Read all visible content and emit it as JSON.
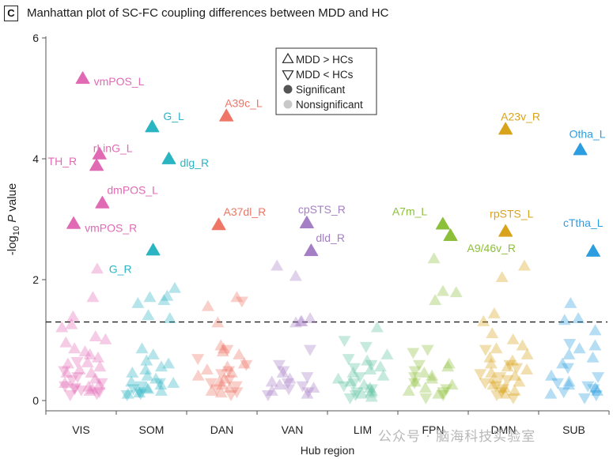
{
  "panel_letter": "C",
  "watermark": "公众号 · 脑海科技实验室",
  "colors": {
    "VIS": "#e16ab4",
    "SOM": "#2bb5c3",
    "DAN": "#ef7566",
    "VAN": "#a57fc6",
    "LIM": "#5fc3a1",
    "FPN": "#8cbf3a",
    "DMN": "#d9a21b",
    "SUB": "#2c9ee0"
  },
  "chart_data": {
    "type": "scatter",
    "title": "Manhattan plot of SC-FC coupling differences between MDD and  HC",
    "xlabel": "Hub region",
    "ylabel": "-log10 P value",
    "ylabel_parts": {
      "prefix": "-log",
      "subscript": "10",
      "italic": "P",
      "suffix": " value"
    },
    "ylim": [
      0,
      6
    ],
    "yticks": [
      0,
      2,
      4,
      6
    ],
    "categories": [
      "VIS",
      "SOM",
      "DAN",
      "VAN",
      "LIM",
      "FPN",
      "DMN",
      "SUB"
    ],
    "threshold": 1.3,
    "legend": {
      "position": "top-center",
      "entries": [
        {
          "marker": "triangle-up-open",
          "label": "MDD > HCs"
        },
        {
          "marker": "triangle-down-open",
          "label": "MDD < HCs"
        },
        {
          "marker": "circle-dark",
          "label": "Significant"
        },
        {
          "marker": "circle-light",
          "label": "Nonsignificant"
        }
      ]
    },
    "significant": [
      {
        "label": "vmPOS_L",
        "network": "VIS",
        "x": 0.74,
        "y": 5.32,
        "dir": "up"
      },
      {
        "label": "rLinG_L",
        "network": "VIS",
        "x": 1.09,
        "y": 4.07,
        "dir": "up"
      },
      {
        "label": "TH_R",
        "network": "VIS",
        "x": 1.03,
        "y": 3.88,
        "dir": "up"
      },
      {
        "label": "dmPOS_L",
        "network": "VIS",
        "x": 1.15,
        "y": 3.26,
        "dir": "up"
      },
      {
        "label": "vmPOS_R",
        "network": "VIS",
        "x": 0.55,
        "y": 2.92,
        "dir": "up"
      },
      {
        "label": "G_L",
        "network": "SOM",
        "x": 0.72,
        "y": 4.52,
        "dir": "up"
      },
      {
        "label": "dlg_R",
        "network": "SOM",
        "x": 1.07,
        "y": 3.99,
        "dir": "up"
      },
      {
        "label": "G_R",
        "network": "SOM",
        "x": 0.74,
        "y": 2.48,
        "dir": "up"
      },
      {
        "label": "A39c_L",
        "network": "DAN",
        "x": 0.8,
        "y": 4.7,
        "dir": "up"
      },
      {
        "label": "A37dl_R",
        "network": "DAN",
        "x": 0.64,
        "y": 2.9,
        "dir": "up"
      },
      {
        "label": "cpSTS_R",
        "network": "VAN",
        "x": 1.01,
        "y": 2.93,
        "dir": "up"
      },
      {
        "label": "dld_R",
        "network": "VAN",
        "x": 1.1,
        "y": 2.47,
        "dir": "up"
      },
      {
        "label": "A7m_L",
        "network": "FPN",
        "x": 0.91,
        "y": 2.91,
        "dir": "up"
      },
      {
        "label": "A9/46v_R",
        "network": "FPN",
        "x": 1.07,
        "y": 2.72,
        "dir": "up"
      },
      {
        "label": "A23v_R",
        "network": "DMN",
        "x": 0.75,
        "y": 4.48,
        "dir": "up"
      },
      {
        "label": "rpSTS_L",
        "network": "DMN",
        "x": 0.75,
        "y": 2.79,
        "dir": "up"
      },
      {
        "label": "Otha_L",
        "network": "SUB",
        "x": 0.84,
        "y": 4.14,
        "dir": "up"
      },
      {
        "label": "cTtha_L",
        "network": "SUB",
        "x": 1.11,
        "y": 2.46,
        "dir": "up"
      }
    ],
    "nonsignificant": {
      "VIS": {
        "up": [
          0.22,
          1.25,
          0.62,
          1.0,
          0.75,
          0.15,
          0.28,
          0.55,
          0.45,
          2.17,
          1.7,
          1.38,
          1.05,
          0.95,
          0.8,
          0.6,
          0.45,
          0.35,
          0.25,
          0.7,
          1.2,
          0.5,
          0.18,
          0.85
        ],
        "down": [
          0.1,
          0.2,
          0.3,
          0.15,
          0.65,
          0.4,
          0.12,
          0.25,
          0.5,
          0.35,
          0.22,
          0.18
        ]
      },
      "SOM": {
        "up": [
          1.85,
          1.7,
          1.65,
          1.6,
          1.4,
          1.35,
          1.72,
          0.85,
          0.75,
          0.6,
          0.55,
          0.45,
          0.35,
          0.3,
          0.25,
          0.2,
          0.15,
          0.12,
          0.5,
          0.65,
          0.4,
          0.28,
          0.18,
          0.1
        ],
        "down": [
          0.15,
          0.2,
          0.3,
          0.1,
          0.25,
          0.12
        ]
      },
      "DAN": {
        "up": [
          1.28,
          1.55,
          1.7,
          0.9,
          0.85,
          0.75,
          0.55,
          0.45,
          0.4,
          0.35,
          0.3,
          0.25,
          0.2,
          0.15,
          0.12,
          0.6,
          0.5,
          0.8
        ],
        "down": [
          1.65,
          0.85,
          0.7,
          0.5,
          0.35,
          0.2,
          0.15,
          0.1,
          0.3,
          0.25,
          0.6,
          0.45
        ]
      },
      "VAN": {
        "up": [
          2.22,
          2.05,
          1.3,
          1.35,
          1.28,
          1.3,
          0.3,
          0.2,
          0.15,
          0.25,
          0.35,
          0.1,
          0.45
        ],
        "down": [
          0.85,
          0.6,
          0.4,
          0.3,
          0.2,
          0.1,
          0.5,
          0.25,
          0.15
        ]
      },
      "LIM": {
        "up": [
          1.2,
          0.75,
          0.65,
          0.55,
          0.45,
          0.35,
          0.3,
          0.25,
          0.2,
          0.15,
          0.12,
          0.1,
          0.5,
          0.4,
          0.05
        ],
        "down": [
          1.0,
          0.9,
          0.7,
          0.6,
          0.4,
          0.3,
          0.2,
          0.1,
          0.15,
          0.05,
          0.55,
          0.25
        ]
      },
      "FPN": {
        "up": [
          1.65,
          1.78,
          1.8,
          2.34,
          0.6,
          0.55,
          0.45,
          0.4,
          0.35,
          0.3,
          0.25,
          0.2,
          0.15,
          0.1
        ],
        "down": [
          0.85,
          0.8,
          0.5,
          0.4,
          0.3,
          0.2,
          0.15,
          0.1,
          0.05,
          0.6
        ]
      },
      "DMN": {
        "up": [
          2.03,
          2.22,
          1.43,
          1.3,
          0.9,
          0.85,
          0.75,
          0.7,
          0.6,
          0.55,
          0.5,
          0.45,
          0.4,
          0.35,
          0.3,
          0.25,
          0.2,
          0.15,
          0.1,
          1.0,
          0.65,
          1.1
        ],
        "down": [
          0.85,
          0.55,
          0.45,
          0.3,
          0.2,
          0.15,
          0.1,
          0.05,
          0.6,
          0.35,
          0.25,
          0.4
        ]
      },
      "SUB": {
        "up": [
          1.6,
          1.35,
          1.32,
          1.15,
          0.9,
          0.85,
          0.75,
          0.7,
          0.6,
          0.4,
          0.3,
          0.25,
          0.2,
          0.15,
          0.1
        ],
        "down": [
          0.95,
          0.55,
          0.3,
          0.2,
          0.15,
          0.1,
          0.05,
          0.4,
          0.25
        ]
      }
    }
  }
}
